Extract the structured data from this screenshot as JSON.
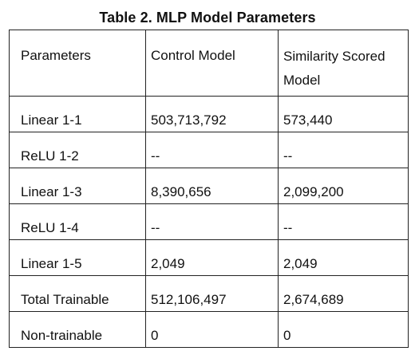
{
  "table": {
    "title": "Table 2. MLP Model Parameters",
    "headers": [
      "Parameters",
      "Control Model",
      "Similarity Scored Model"
    ],
    "rows": [
      [
        "Linear 1-1",
        "503,713,792",
        "573,440"
      ],
      [
        "ReLU 1-2",
        "--",
        "--"
      ],
      [
        "Linear 1-3",
        "8,390,656",
        "2,099,200"
      ],
      [
        "ReLU 1-4",
        "--",
        "--"
      ],
      [
        "Linear 1-5",
        "2,049",
        "2,049"
      ],
      [
        "Total Trainable",
        "512,106,497",
        "2,674,689"
      ],
      [
        "Non-trainable",
        "0",
        "0"
      ]
    ]
  }
}
